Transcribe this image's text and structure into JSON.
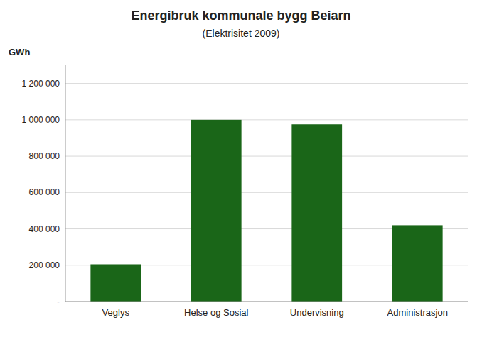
{
  "chart_data": {
    "type": "bar",
    "title": "Energibruk kommunale bygg  Beiarn",
    "subtitle": "(Elektrisitet 2009)",
    "ylabel": "GWh",
    "categories": [
      "Veglys",
      "Helse og Sosial",
      "Undervisning",
      "Administrasjon"
    ],
    "values": [
      205000,
      1000000,
      975000,
      420000
    ],
    "color": "#1a6618",
    "ylim": [
      0,
      1300000
    ],
    "yticks": [
      {
        "value": 0,
        "label": "-"
      },
      {
        "value": 200000,
        "label": "200 000"
      },
      {
        "value": 400000,
        "label": "400 000"
      },
      {
        "value": 600000,
        "label": "600 000"
      },
      {
        "value": 800000,
        "label": "800 000"
      },
      {
        "value": 1000000,
        "label": "1 000 000"
      },
      {
        "value": 1200000,
        "label": "1 200 000"
      }
    ],
    "grid": true
  }
}
